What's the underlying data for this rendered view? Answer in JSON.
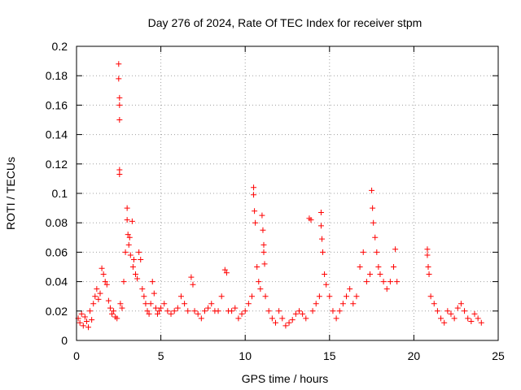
{
  "chart_data": {
    "type": "scatter",
    "title": "Day 276 of 2024, Rate Of TEC Index for receiver stpm",
    "xlabel": "GPS time / hours",
    "ylabel": "ROTI / TECUs",
    "xlim": [
      0,
      25
    ],
    "ylim": [
      0,
      0.2
    ],
    "x_ticks": [
      "0",
      "5",
      "10",
      "15",
      "20",
      "25"
    ],
    "y_ticks": [
      "0",
      "0.02",
      "0.04",
      "0.06",
      "0.08",
      "0.1",
      "0.12",
      "0.14",
      "0.16",
      "0.18",
      "0.2"
    ],
    "grid": true,
    "marker": "+",
    "marker_color": "#ff0000",
    "series": [
      {
        "points": [
          [
            0.1,
            0.015
          ],
          [
            0.2,
            0.012
          ],
          [
            0.3,
            0.018
          ],
          [
            0.4,
            0.01
          ],
          [
            0.5,
            0.016
          ],
          [
            0.6,
            0.013
          ],
          [
            0.7,
            0.009
          ],
          [
            0.8,
            0.02
          ],
          [
            0.9,
            0.014
          ],
          [
            1.0,
            0.025
          ],
          [
            1.1,
            0.03
          ],
          [
            1.2,
            0.035
          ],
          [
            1.3,
            0.028
          ],
          [
            1.4,
            0.032
          ],
          [
            1.5,
            0.049
          ],
          [
            1.6,
            0.045
          ],
          [
            1.7,
            0.04
          ],
          [
            1.8,
            0.038
          ],
          [
            1.9,
            0.027
          ],
          [
            2.0,
            0.022
          ],
          [
            2.1,
            0.018
          ],
          [
            2.2,
            0.02
          ],
          [
            2.3,
            0.016
          ],
          [
            2.4,
            0.015
          ],
          [
            2.5,
            0.188
          ],
          [
            2.5,
            0.178
          ],
          [
            2.55,
            0.165
          ],
          [
            2.55,
            0.16
          ],
          [
            2.55,
            0.15
          ],
          [
            2.55,
            0.116
          ],
          [
            2.55,
            0.113
          ],
          [
            2.6,
            0.025
          ],
          [
            2.7,
            0.022
          ],
          [
            2.8,
            0.04
          ],
          [
            2.9,
            0.06
          ],
          [
            3.0,
            0.09
          ],
          [
            3.0,
            0.082
          ],
          [
            3.05,
            0.072
          ],
          [
            3.1,
            0.065
          ],
          [
            3.15,
            0.07
          ],
          [
            3.2,
            0.058
          ],
          [
            3.3,
            0.081
          ],
          [
            3.35,
            0.05
          ],
          [
            3.4,
            0.055
          ],
          [
            3.5,
            0.045
          ],
          [
            3.6,
            0.042
          ],
          [
            3.7,
            0.06
          ],
          [
            3.8,
            0.055
          ],
          [
            3.9,
            0.035
          ],
          [
            4.0,
            0.03
          ],
          [
            4.1,
            0.025
          ],
          [
            4.2,
            0.02
          ],
          [
            4.3,
            0.018
          ],
          [
            4.4,
            0.025
          ],
          [
            4.5,
            0.04
          ],
          [
            4.6,
            0.032
          ],
          [
            4.7,
            0.022
          ],
          [
            4.8,
            0.018
          ],
          [
            4.9,
            0.02
          ],
          [
            5.0,
            0.022
          ],
          [
            5.2,
            0.025
          ],
          [
            5.4,
            0.02
          ],
          [
            5.6,
            0.018
          ],
          [
            5.8,
            0.02
          ],
          [
            6.0,
            0.022
          ],
          [
            6.2,
            0.03
          ],
          [
            6.4,
            0.025
          ],
          [
            6.6,
            0.02
          ],
          [
            6.8,
            0.043
          ],
          [
            6.9,
            0.038
          ],
          [
            7.0,
            0.02
          ],
          [
            7.2,
            0.018
          ],
          [
            7.4,
            0.015
          ],
          [
            7.6,
            0.02
          ],
          [
            7.8,
            0.022
          ],
          [
            8.0,
            0.025
          ],
          [
            8.2,
            0.02
          ],
          [
            8.4,
            0.02
          ],
          [
            8.6,
            0.03
          ],
          [
            8.8,
            0.048
          ],
          [
            8.9,
            0.046
          ],
          [
            9.0,
            0.02
          ],
          [
            9.2,
            0.02
          ],
          [
            9.4,
            0.022
          ],
          [
            9.6,
            0.015
          ],
          [
            9.8,
            0.018
          ],
          [
            10.0,
            0.02
          ],
          [
            10.2,
            0.025
          ],
          [
            10.4,
            0.03
          ],
          [
            10.5,
            0.104
          ],
          [
            10.5,
            0.099
          ],
          [
            10.55,
            0.088
          ],
          [
            10.6,
            0.08
          ],
          [
            10.7,
            0.05
          ],
          [
            10.8,
            0.04
          ],
          [
            10.9,
            0.035
          ],
          [
            11.0,
            0.085
          ],
          [
            11.05,
            0.075
          ],
          [
            11.1,
            0.065
          ],
          [
            11.1,
            0.06
          ],
          [
            11.15,
            0.052
          ],
          [
            11.2,
            0.03
          ],
          [
            11.4,
            0.02
          ],
          [
            11.6,
            0.015
          ],
          [
            11.8,
            0.012
          ],
          [
            12.0,
            0.02
          ],
          [
            12.2,
            0.015
          ],
          [
            12.4,
            0.01
          ],
          [
            12.6,
            0.012
          ],
          [
            12.8,
            0.014
          ],
          [
            13.0,
            0.018
          ],
          [
            13.2,
            0.02
          ],
          [
            13.4,
            0.018
          ],
          [
            13.6,
            0.015
          ],
          [
            13.8,
            0.083
          ],
          [
            13.9,
            0.082
          ],
          [
            14.0,
            0.02
          ],
          [
            14.2,
            0.025
          ],
          [
            14.4,
            0.03
          ],
          [
            14.5,
            0.087
          ],
          [
            14.5,
            0.078
          ],
          [
            14.55,
            0.069
          ],
          [
            14.6,
            0.06
          ],
          [
            14.7,
            0.045
          ],
          [
            14.8,
            0.038
          ],
          [
            15.0,
            0.03
          ],
          [
            15.2,
            0.02
          ],
          [
            15.4,
            0.015
          ],
          [
            15.6,
            0.02
          ],
          [
            15.8,
            0.025
          ],
          [
            16.0,
            0.03
          ],
          [
            16.2,
            0.035
          ],
          [
            16.4,
            0.025
          ],
          [
            16.6,
            0.03
          ],
          [
            16.8,
            0.05
          ],
          [
            17.0,
            0.06
          ],
          [
            17.2,
            0.04
          ],
          [
            17.4,
            0.045
          ],
          [
            17.5,
            0.102
          ],
          [
            17.55,
            0.09
          ],
          [
            17.6,
            0.08
          ],
          [
            17.7,
            0.07
          ],
          [
            17.8,
            0.06
          ],
          [
            17.9,
            0.05
          ],
          [
            18.0,
            0.045
          ],
          [
            18.2,
            0.04
          ],
          [
            18.4,
            0.035
          ],
          [
            18.6,
            0.04
          ],
          [
            18.8,
            0.05
          ],
          [
            18.9,
            0.062
          ],
          [
            19.0,
            0.04
          ],
          [
            20.8,
            0.062
          ],
          [
            20.8,
            0.058
          ],
          [
            20.85,
            0.05
          ],
          [
            20.9,
            0.045
          ],
          [
            21.0,
            0.03
          ],
          [
            21.2,
            0.025
          ],
          [
            21.4,
            0.02
          ],
          [
            21.6,
            0.015
          ],
          [
            21.8,
            0.012
          ],
          [
            22.0,
            0.02
          ],
          [
            22.2,
            0.018
          ],
          [
            22.4,
            0.015
          ],
          [
            22.6,
            0.022
          ],
          [
            22.8,
            0.025
          ],
          [
            23.0,
            0.02
          ],
          [
            23.2,
            0.015
          ],
          [
            23.4,
            0.013
          ],
          [
            23.6,
            0.018
          ],
          [
            23.8,
            0.015
          ],
          [
            24.0,
            0.012
          ]
        ]
      }
    ]
  }
}
